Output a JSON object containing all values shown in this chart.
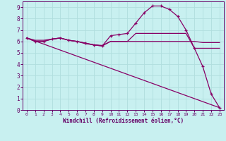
{
  "xlabel": "Windchill (Refroidissement éolien,°C)",
  "bg_color": "#c8f0f0",
  "grid_color": "#b0dede",
  "line_color": "#880066",
  "spine_color": "#660066",
  "xlim": [
    -0.5,
    23.5
  ],
  "ylim": [
    0,
    9.5
  ],
  "xticks": [
    0,
    1,
    2,
    3,
    4,
    5,
    6,
    7,
    8,
    9,
    10,
    11,
    12,
    13,
    14,
    15,
    16,
    17,
    18,
    19,
    20,
    21,
    22,
    23
  ],
  "yticks": [
    0,
    1,
    2,
    3,
    4,
    5,
    6,
    7,
    8,
    9
  ],
  "line1_x": [
    0,
    1,
    2,
    3,
    4,
    5,
    6,
    7,
    8,
    9,
    10,
    11,
    12,
    13,
    14,
    15,
    16,
    17,
    18,
    19,
    20,
    21,
    22,
    23
  ],
  "line1_y": [
    6.3,
    6.0,
    6.0,
    6.2,
    6.3,
    6.1,
    6.0,
    5.85,
    5.7,
    5.6,
    6.5,
    6.6,
    6.7,
    7.6,
    8.5,
    9.1,
    9.1,
    8.8,
    8.2,
    7.0,
    5.4,
    3.8,
    1.4,
    0.2
  ],
  "line2_x": [
    0,
    1,
    2,
    3,
    4,
    5,
    6,
    7,
    8,
    9,
    10,
    11,
    12,
    13,
    14,
    15,
    16,
    17,
    18,
    19,
    20,
    21,
    22,
    23
  ],
  "line2_y": [
    6.3,
    6.0,
    6.0,
    6.2,
    6.3,
    6.1,
    6.0,
    5.8,
    5.7,
    5.6,
    6.0,
    6.0,
    6.0,
    6.7,
    6.7,
    6.7,
    6.7,
    6.7,
    6.7,
    6.7,
    5.4,
    5.4,
    5.4,
    5.4
  ],
  "line3_x": [
    0,
    1,
    2,
    3,
    4,
    5,
    6,
    7,
    8,
    9,
    10,
    11,
    12,
    13,
    14,
    15,
    16,
    17,
    18,
    19,
    20,
    21,
    22,
    23
  ],
  "line3_y": [
    6.3,
    6.1,
    6.1,
    6.2,
    6.3,
    6.1,
    6.0,
    5.85,
    5.7,
    5.65,
    6.0,
    6.0,
    6.0,
    6.0,
    6.0,
    6.0,
    6.0,
    6.0,
    6.0,
    6.0,
    6.0,
    5.9,
    5.9,
    5.9
  ],
  "line4_x": [
    0,
    23
  ],
  "line4_y": [
    6.3,
    0.2
  ]
}
